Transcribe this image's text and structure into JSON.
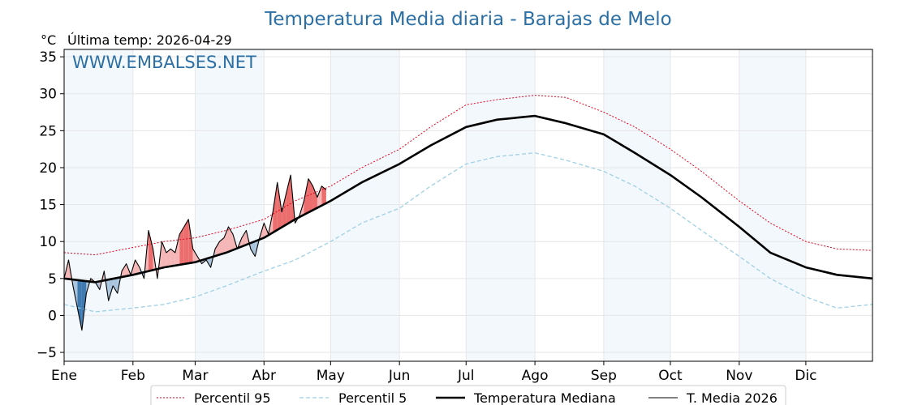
{
  "chart_data": {
    "type": "line",
    "title": "Temperatura Media diaria - Barajas de Melo",
    "ylabel": "°C",
    "subtitle": "Última temp: 2026-04-29",
    "watermark": "WWW.EMBALSES.NET",
    "ylim": [
      -6.2,
      36
    ],
    "yticks": [
      -5,
      0,
      5,
      10,
      15,
      20,
      25,
      30,
      35
    ],
    "months": [
      "Ene",
      "Feb",
      "Mar",
      "Abr",
      "May",
      "Jun",
      "Jul",
      "Ago",
      "Sep",
      "Oct",
      "Nov",
      "Dic"
    ],
    "grid": true,
    "legend_position": "bottom",
    "colors": {
      "title": "#2b6fa5",
      "p95": "#e8001c",
      "p5": "#9fd0e3",
      "median": "#000000",
      "t2026": "#000000",
      "above": "#f4b6b6",
      "above_strong": "#ec6d6d",
      "below": "#a9c5dd",
      "below_strong": "#3f7bb0",
      "month_band": "#f3f8fd"
    },
    "series": [
      {
        "name": "Percentil 95",
        "key": "p95",
        "style": "dotted",
        "x": [
          1,
          15,
          32,
          46,
          60,
          74,
          91,
          105,
          121,
          135,
          152,
          166,
          182,
          196,
          213,
          227,
          244,
          258,
          274,
          288,
          305,
          319,
          335,
          349,
          365
        ],
        "values": [
          8.5,
          8.2,
          9.2,
          10.0,
          10.5,
          11.5,
          13.0,
          15.5,
          17.5,
          20.0,
          22.5,
          25.5,
          28.5,
          29.2,
          29.8,
          29.5,
          27.5,
          25.5,
          22.5,
          19.5,
          15.5,
          12.5,
          10.0,
          9.0,
          8.8
        ]
      },
      {
        "name": "Percentil 5",
        "key": "p5",
        "style": "dashed",
        "x": [
          1,
          15,
          32,
          46,
          60,
          74,
          91,
          105,
          121,
          135,
          152,
          166,
          182,
          196,
          213,
          227,
          244,
          258,
          274,
          288,
          305,
          319,
          335,
          349,
          365
        ],
        "values": [
          1.5,
          0.5,
          1.0,
          1.5,
          2.5,
          4.0,
          6.0,
          7.5,
          10.0,
          12.5,
          14.5,
          17.5,
          20.5,
          21.5,
          22.0,
          21.0,
          19.5,
          17.5,
          14.5,
          11.5,
          8.0,
          5.0,
          2.5,
          1.0,
          1.5
        ]
      },
      {
        "name": "Temperatura Mediana",
        "key": "median",
        "style": "solid-thick",
        "x": [
          1,
          15,
          32,
          46,
          60,
          74,
          91,
          105,
          121,
          135,
          152,
          166,
          182,
          196,
          213,
          227,
          244,
          258,
          274,
          288,
          305,
          319,
          335,
          349,
          365
        ],
        "values": [
          5.0,
          4.5,
          5.5,
          6.5,
          7.2,
          8.5,
          10.5,
          13.0,
          15.5,
          18.0,
          20.5,
          23.0,
          25.5,
          26.5,
          27.0,
          26.0,
          24.5,
          22.0,
          19.0,
          16.0,
          12.0,
          8.5,
          6.5,
          5.5,
          5.0
        ]
      },
      {
        "name": "T. Media 2026",
        "key": "t2026",
        "style": "solid-thin",
        "x": [
          1,
          3,
          5,
          7,
          9,
          11,
          13,
          15,
          17,
          19,
          21,
          23,
          25,
          27,
          29,
          31,
          33,
          35,
          37,
          39,
          41,
          43,
          45,
          47,
          49,
          51,
          53,
          55,
          57,
          59,
          61,
          63,
          65,
          67,
          69,
          71,
          73,
          75,
          77,
          79,
          81,
          83,
          85,
          87,
          89,
          91,
          93,
          95,
          97,
          99,
          101,
          103,
          105,
          107,
          109,
          111,
          113,
          115,
          117,
          119
        ],
        "values": [
          5.0,
          7.5,
          4.0,
          1.0,
          -2.0,
          3.0,
          5.0,
          4.5,
          3.5,
          6.0,
          2.0,
          4.0,
          3.0,
          6.0,
          7.0,
          5.5,
          7.5,
          6.5,
          5.0,
          11.5,
          9.0,
          5.0,
          10.0,
          8.5,
          9.0,
          8.5,
          11.0,
          12.0,
          13.0,
          9.0,
          8.0,
          7.0,
          7.5,
          6.5,
          9.0,
          10.0,
          10.5,
          12.0,
          11.0,
          9.0,
          10.5,
          11.5,
          9.0,
          8.0,
          10.5,
          12.5,
          11.0,
          14.0,
          18.0,
          14.0,
          16.5,
          19.0,
          12.5,
          13.5,
          15.5,
          18.5,
          17.5,
          16.0,
          17.5,
          17.0
        ]
      }
    ],
    "legend": [
      "Percentil 95",
      "Percentil 5",
      "Temperatura Mediana",
      "T. Media 2026"
    ]
  }
}
